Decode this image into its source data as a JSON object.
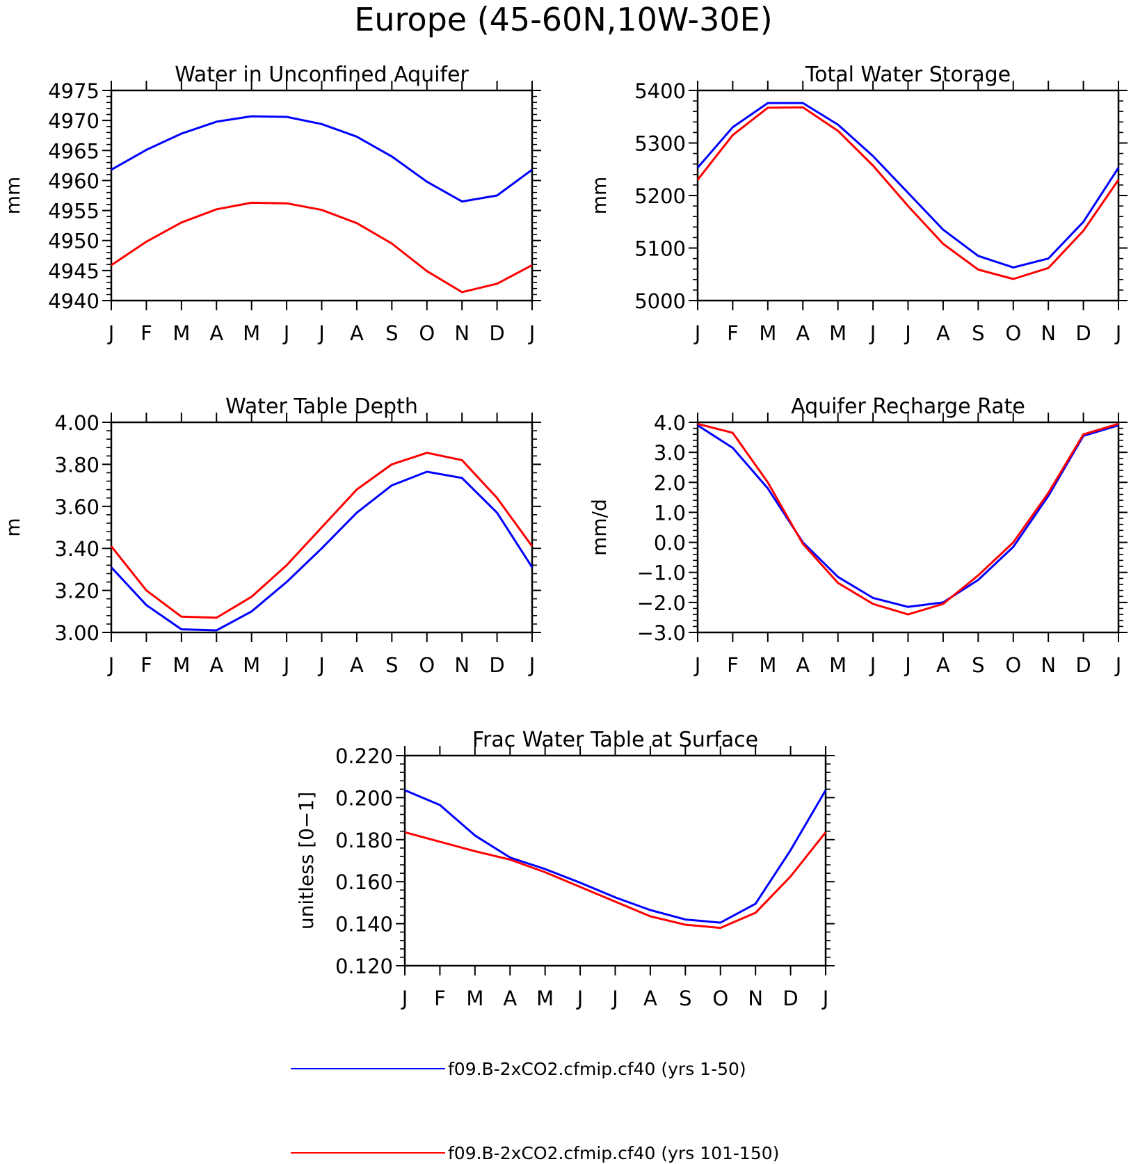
{
  "page_title": "Europe (45-60N,10W-30E)",
  "colors": {
    "series_1": "#0000ff",
    "series_2": "#ff0000",
    "axes": "#000000"
  },
  "legend": [
    {
      "label": "f09.B-2xCO2.cfmip.cf40 (yrs 1-50)",
      "color": "#0000ff"
    },
    {
      "label": "f09.B-2xCO2.cfmip.cf40 (yrs 101-150)",
      "color": "#ff0000"
    }
  ],
  "chart_data": [
    {
      "type": "line",
      "title": "Water in Unconfined Aquifer",
      "xlabel": "",
      "ylabel": "mm",
      "categories": [
        "J",
        "F",
        "M",
        "A",
        "M",
        "J",
        "J",
        "A",
        "S",
        "O",
        "N",
        "D",
        "J"
      ],
      "ylim": [
        4940,
        4975
      ],
      "yticks": [
        4940,
        4945,
        4950,
        4955,
        4960,
        4965,
        4970,
        4975
      ],
      "ytick_labels": [
        "4940",
        "4945",
        "4950",
        "4955",
        "4960",
        "4965",
        "4970",
        "4975"
      ],
      "series": [
        {
          "color": "#0000ff",
          "values": [
            4961.8,
            4965.1,
            4967.8,
            4969.8,
            4970.7,
            4970.6,
            4969.4,
            4967.3,
            4964.0,
            4959.8,
            4956.5,
            4957.5,
            4961.8
          ]
        },
        {
          "color": "#ff0000",
          "values": [
            4945.9,
            4949.8,
            4953.0,
            4955.2,
            4956.3,
            4956.2,
            4955.1,
            4952.9,
            4949.5,
            4944.9,
            4941.4,
            4942.8,
            4945.9
          ]
        }
      ]
    },
    {
      "type": "line",
      "title": "Total Water Storage",
      "xlabel": "",
      "ylabel": "mm",
      "categories": [
        "J",
        "F",
        "M",
        "A",
        "M",
        "J",
        "J",
        "A",
        "S",
        "O",
        "N",
        "D",
        "J"
      ],
      "ylim": [
        5000,
        5400
      ],
      "yticks": [
        5000,
        5100,
        5200,
        5300,
        5400
      ],
      "ytick_labels": [
        "5000",
        "5100",
        "5200",
        "5300",
        "5400"
      ],
      "series": [
        {
          "color": "#0000ff",
          "values": [
            5253,
            5330,
            5376,
            5376,
            5335,
            5275,
            5205,
            5135,
            5085,
            5063,
            5080,
            5150,
            5253
          ]
        },
        {
          "color": "#ff0000",
          "values": [
            5230,
            5315,
            5367,
            5368,
            5323,
            5257,
            5180,
            5108,
            5059,
            5041,
            5062,
            5133,
            5230
          ]
        }
      ]
    },
    {
      "type": "line",
      "title": "Water Table Depth",
      "xlabel": "",
      "ylabel": "m",
      "categories": [
        "J",
        "F",
        "M",
        "A",
        "M",
        "J",
        "J",
        "A",
        "S",
        "O",
        "N",
        "D",
        "J"
      ],
      "ylim": [
        3.0,
        4.0
      ],
      "yticks": [
        3.0,
        3.2,
        3.4,
        3.6,
        3.8,
        4.0
      ],
      "ytick_labels": [
        "3.00",
        "3.20",
        "3.40",
        "3.60",
        "3.80",
        "4.00"
      ],
      "series": [
        {
          "color": "#0000ff",
          "values": [
            3.31,
            3.13,
            3.015,
            3.01,
            3.1,
            3.24,
            3.4,
            3.57,
            3.7,
            3.765,
            3.735,
            3.57,
            3.31
          ]
        },
        {
          "color": "#ff0000",
          "values": [
            3.41,
            3.2,
            3.075,
            3.07,
            3.17,
            3.32,
            3.5,
            3.68,
            3.8,
            3.855,
            3.82,
            3.64,
            3.41
          ]
        }
      ]
    },
    {
      "type": "line",
      "title": "Aquifer Recharge Rate",
      "xlabel": "",
      "ylabel": "mm/d",
      "categories": [
        "J",
        "F",
        "M",
        "A",
        "M",
        "J",
        "J",
        "A",
        "S",
        "O",
        "N",
        "D",
        "J"
      ],
      "ylim": [
        -3.0,
        4.0
      ],
      "yticks": [
        -3.0,
        -2.0,
        -1.0,
        0.0,
        1.0,
        2.0,
        3.0,
        4.0
      ],
      "ytick_labels": [
        "−3.0",
        "−2.0",
        "−1.0",
        "0.0",
        "1.0",
        "2.0",
        "3.0",
        "4.0"
      ],
      "series": [
        {
          "color": "#0000ff",
          "values": [
            3.9,
            3.15,
            1.8,
            0.0,
            -1.15,
            -1.85,
            -2.15,
            -2.0,
            -1.25,
            -0.15,
            1.55,
            3.55,
            3.9
          ]
        },
        {
          "color": "#ff0000",
          "values": [
            3.95,
            3.65,
            2.0,
            -0.05,
            -1.35,
            -2.05,
            -2.4,
            -2.05,
            -1.1,
            0.0,
            1.65,
            3.6,
            3.95
          ]
        }
      ]
    },
    {
      "type": "line",
      "title": "Frac Water Table at Surface",
      "xlabel": "",
      "ylabel": "unitless [0−1]",
      "categories": [
        "J",
        "F",
        "M",
        "A",
        "M",
        "J",
        "J",
        "A",
        "S",
        "O",
        "N",
        "D",
        "J"
      ],
      "ylim": [
        0.12,
        0.22
      ],
      "yticks": [
        0.12,
        0.14,
        0.16,
        0.18,
        0.2,
        0.22
      ],
      "ytick_labels": [
        "0.120",
        "0.140",
        "0.160",
        "0.180",
        "0.200",
        "0.220"
      ],
      "series": [
        {
          "color": "#0000ff",
          "values": [
            0.2035,
            0.1965,
            0.182,
            0.1715,
            0.166,
            0.1595,
            0.1525,
            0.1465,
            0.142,
            0.1405,
            0.1495,
            0.175,
            0.2035
          ]
        },
        {
          "color": "#ff0000",
          "values": [
            0.1835,
            0.179,
            0.1745,
            0.1705,
            0.1645,
            0.1575,
            0.1505,
            0.1435,
            0.1395,
            0.138,
            0.1452,
            0.1625,
            0.1835
          ]
        }
      ]
    }
  ]
}
